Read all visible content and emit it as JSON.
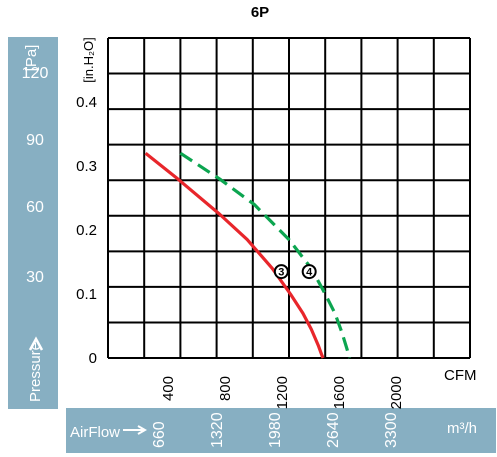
{
  "chart_data": {
    "type": "line",
    "title": "6P",
    "pressure_axis": {
      "unit_pa": "[Pa]",
      "unit_inh2o": "[in.H₂O]",
      "label": "Pressure",
      "pa_ticks": [
        "120",
        "90",
        "60",
        "30"
      ],
      "inh2o_ticks": [
        "0.4",
        "0.3",
        "0.2",
        "0.1",
        "0"
      ],
      "ylim_inh2o": [
        0,
        0.5
      ]
    },
    "airflow_axis": {
      "cfm_unit": "CFM",
      "cfm_ticks": [
        "400",
        "800",
        "1200",
        "1600",
        "2000"
      ],
      "xlim_cfm": [
        0,
        2600
      ],
      "m3h_label": "AirFlow",
      "m3h_ticks": [
        "660",
        "1320",
        "1980",
        "2640",
        "3300"
      ],
      "m3h_unit": "m³/h"
    },
    "grid": true,
    "series": [
      {
        "marker": "3",
        "color": "#e8262b",
        "dashed": false,
        "x": [
          270,
          500,
          800,
          1000,
          1180,
          1310,
          1400,
          1460,
          1510,
          1535,
          1545
        ],
        "y": [
          0.32,
          0.28,
          0.225,
          0.185,
          0.14,
          0.1,
          0.07,
          0.045,
          0.02,
          0.005,
          0
        ]
      },
      {
        "marker": "4",
        "color": "#0ca550",
        "dashed": true,
        "x": [
          520,
          800,
          1050,
          1300,
          1460,
          1560,
          1630,
          1680,
          1715,
          1735
        ],
        "y": [
          0.32,
          0.28,
          0.24,
          0.185,
          0.14,
          0.1,
          0.07,
          0.04,
          0.015,
          0
        ]
      }
    ],
    "annotations": [
      {
        "text": "3",
        "series": 0,
        "x": 1245,
        "y": 0.135
      },
      {
        "text": "4",
        "series": 1,
        "x": 1445,
        "y": 0.135
      }
    ]
  }
}
